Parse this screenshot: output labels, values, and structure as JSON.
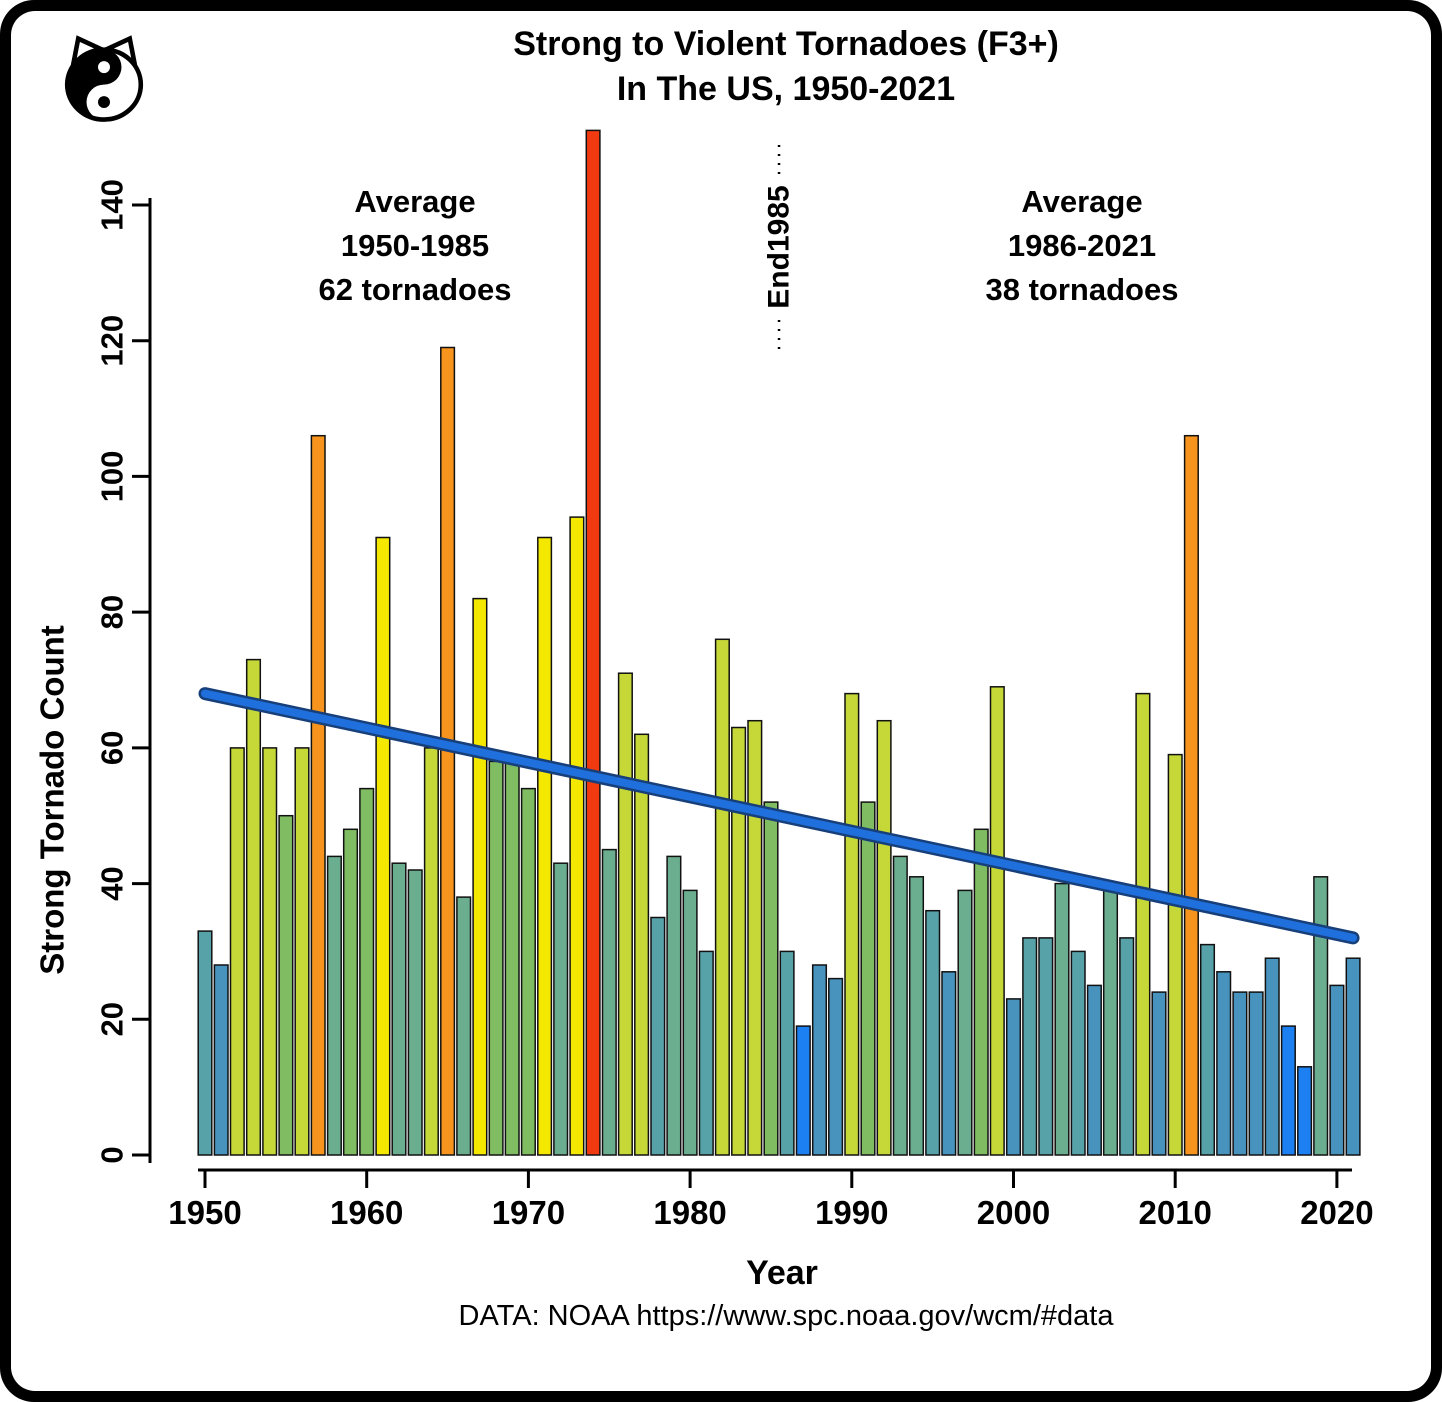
{
  "header": {
    "title_line1": "Strong to Violent Tornadoes (F3+)",
    "title_line2": "In The US, 1950-2021"
  },
  "annotations": {
    "left": {
      "lines": [
        "Average",
        "1950-1985",
        "62 tornadoes"
      ]
    },
    "right": {
      "lines": [
        "Average",
        "1986-2021",
        "38 tornadoes"
      ]
    }
  },
  "footer": {
    "source": "DATA: NOAA https://www.spc.noaa.gov/wcm/#data"
  },
  "chart_data": {
    "type": "bar",
    "title": "Strong to Violent Tornadoes (F3+) In The US, 1950-2021",
    "xlabel": "Year",
    "ylabel": "Strong Tornado Count",
    "ylim": [
      0,
      140
    ],
    "yticks": [
      0,
      20,
      40,
      60,
      80,
      100,
      120,
      140
    ],
    "xticks": [
      1950,
      1960,
      1970,
      1980,
      1990,
      2000,
      2010,
      2020
    ],
    "start_year": 1950,
    "end_year": 2021,
    "values": [
      33,
      28,
      60,
      73,
      60,
      50,
      60,
      106,
      44,
      48,
      54,
      91,
      43,
      42,
      60,
      119,
      38,
      82,
      58,
      58,
      54,
      91,
      43,
      94,
      151,
      45,
      71,
      62,
      35,
      44,
      39,
      30,
      76,
      63,
      64,
      52,
      30,
      19,
      28,
      26,
      68,
      52,
      64,
      44,
      41,
      36,
      27,
      39,
      48,
      69,
      23,
      32,
      32,
      40,
      30,
      25,
      40,
      32,
      68,
      24,
      59,
      106,
      31,
      27,
      24,
      24,
      29,
      19,
      13,
      41,
      25,
      29
    ],
    "average_1950_1985": 62,
    "average_1986_2021": 38,
    "trend_line": {
      "x": [
        1950,
        2021
      ],
      "y": [
        68,
        32
      ],
      "color": "#1F6FDC",
      "outline_color": "#173F7A"
    },
    "divider": {
      "year": 1985.5,
      "label": "End1985"
    },
    "color_scale": [
      {
        "min": 120,
        "color": "#F23A10"
      },
      {
        "min": 95,
        "color": "#F7941D"
      },
      {
        "min": 77,
        "color": "#F5E800"
      },
      {
        "min": 59,
        "color": "#C6D838"
      },
      {
        "min": 47,
        "color": "#80BD62"
      },
      {
        "min": 38,
        "color": "#6BAE8F"
      },
      {
        "min": 30,
        "color": "#57A2A9"
      },
      {
        "min": 20,
        "color": "#4793BE"
      },
      {
        "min": 0,
        "color": "#1C80F2"
      }
    ],
    "legend_position": "none",
    "grid": false
  }
}
